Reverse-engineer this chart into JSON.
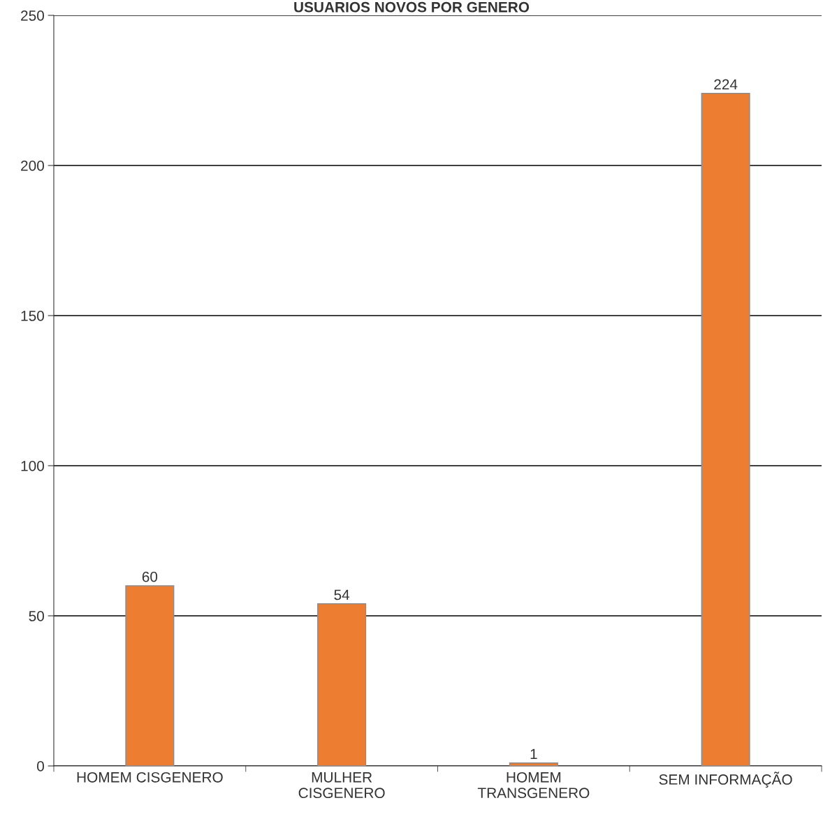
{
  "chart_data": {
    "type": "bar",
    "title": "USUARIOS NOVOS POR GENERO",
    "categories": [
      "HOMEM CISGENERO",
      "MULHER\nCISGENERO",
      "HOMEM\nTRANSGENERO",
      "SEM INFORMAÇÃO"
    ],
    "values": [
      60,
      54,
      1,
      224
    ],
    "color": "#ed7d31",
    "ylim": [
      0,
      250
    ],
    "yticks": [
      0,
      50,
      100,
      150,
      200,
      250
    ],
    "grid": "y",
    "data_labels": true,
    "legend": false
  }
}
